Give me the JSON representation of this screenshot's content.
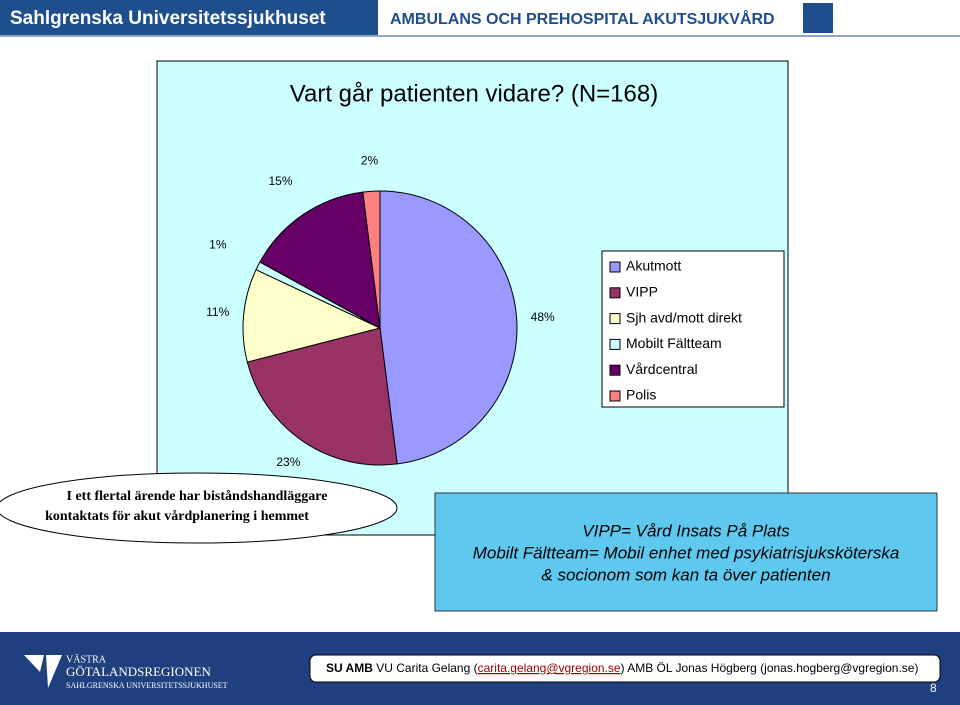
{
  "header": {
    "left": "Sahlgrenska Universitetssjukhuset",
    "right": "AMBULANS OCH PREHOSPITAL AKUTSJUKVÅRD"
  },
  "chart_data": {
    "type": "pie",
    "title": "Vart går patienten vidare? (N=168)",
    "categories": [
      "Akutmott",
      "VIPP",
      "Sjh avd/mott direkt",
      "Mobilt Fältteam",
      "Vårdcentral",
      "Polis"
    ],
    "values": [
      48,
      23,
      11,
      1,
      15,
      2
    ],
    "value_labels": [
      "48%",
      "23%",
      "11%",
      "1%",
      "15%",
      "2%"
    ],
    "colors": [
      "#9999ff",
      "#993366",
      "#ffffcc",
      "#ccffff",
      "#660066",
      "#ff8080"
    ],
    "legend": "right"
  },
  "callout": [
    "I ett flertal ärende har biståndshandläggare",
    "kontaktats för akut vårdplanering i hemmet"
  ],
  "definitions": [
    "VIPP= Vård Insats På Plats",
    "Mobilt Fältteam= Mobil enhet med psykiatrisjuksköterska",
    "& socionom som kan ta över patienten"
  ],
  "footer": {
    "logo": [
      "VÄSTRA",
      "GÖTALANDSREGIONEN",
      "SAHLGRENSKA UNIVERSITETSSJUKHUSET"
    ],
    "contact": [
      "SU AMB",
      " VU Carita Gelang (",
      "carita.gelang@vgregion.se",
      ") AMB ÖL Jonas Högberg (jonas.hogberg@vgregion.se)"
    ],
    "page_number": "8"
  }
}
